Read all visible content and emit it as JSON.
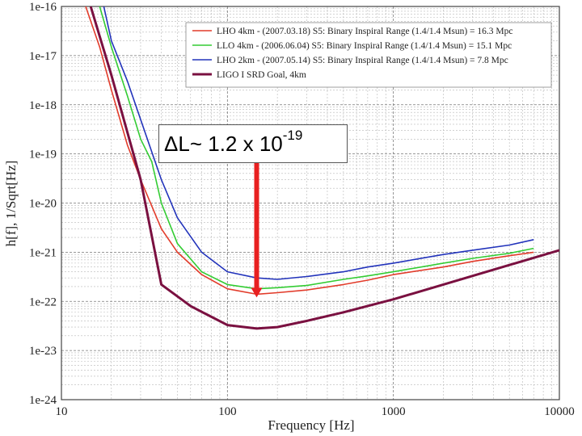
{
  "chart_data": {
    "type": "line",
    "xscale": "log",
    "yscale": "log",
    "xlim": [
      10,
      10000
    ],
    "ylim": [
      1e-24,
      1e-16
    ],
    "xlabel": "Frequency [Hz]",
    "ylabel": "h[f], 1/Sqrt[Hz]",
    "x_ticks": [
      "10",
      "100",
      "1000",
      "10000"
    ],
    "y_ticks": [
      "1e-24",
      "1e-23",
      "1e-22",
      "1e-21",
      "1e-20",
      "1e-19",
      "1e-18",
      "1e-17",
      "1e-16"
    ],
    "grid": true,
    "legend_position": "top-right",
    "series": [
      {
        "name": "LHO 4km - (2007.03.18) S5: Binary Inspiral Range (1.4/1.4 Msun) = 16.3 Mpc",
        "color": "#e23b2a",
        "x": [
          14,
          17,
          20,
          25,
          30,
          40,
          50,
          70,
          100,
          150,
          200,
          300,
          500,
          700,
          1000,
          2000,
          3000,
          5000,
          7000
        ],
        "y": [
          1e-16,
          1.5e-17,
          2e-18,
          1.5e-19,
          3e-20,
          3e-21,
          1e-21,
          3.5e-22,
          1.8e-22,
          1.4e-22,
          1.5e-22,
          1.7e-22,
          2.2e-22,
          2.7e-22,
          3.5e-22,
          5e-22,
          6.5e-22,
          8.5e-22,
          1e-21
        ]
      },
      {
        "name": "LLO 4km - (2006.06.04) S5: Binary Inspiral Range (1.4/1.4 Msun) = 15.1 Mpc",
        "color": "#33cc33",
        "x": [
          17,
          20,
          25,
          30,
          35,
          40,
          50,
          70,
          100,
          150,
          200,
          300,
          500,
          700,
          1000,
          2000,
          3000,
          5000,
          7000
        ],
        "y": [
          1e-16,
          1.5e-17,
          1.5e-18,
          2e-19,
          7e-20,
          1e-20,
          1.5e-21,
          4e-22,
          2.2e-22,
          1.8e-22,
          1.9e-22,
          2.1e-22,
          2.8e-22,
          3.3e-22,
          4e-22,
          6e-22,
          7.5e-22,
          9.5e-22,
          1.2e-21
        ]
      },
      {
        "name": "LHO 2km - (2007.05.14) S5: Binary Inspiral Range (1.4/1.4 Msun) = 7.8 Mpc",
        "color": "#2233bb",
        "x": [
          18,
          20,
          25,
          30,
          40,
          50,
          70,
          100,
          150,
          200,
          300,
          500,
          700,
          1000,
          2000,
          3000,
          5000,
          7000
        ],
        "y": [
          1e-16,
          2e-17,
          3e-18,
          5e-19,
          3e-20,
          5e-21,
          1e-21,
          4e-22,
          3e-22,
          2.8e-22,
          3.2e-22,
          4e-22,
          5e-22,
          6e-22,
          9e-22,
          1.1e-21,
          1.4e-21,
          1.8e-21
        ]
      },
      {
        "name": "LIGO I SRD Goal, 4km",
        "color": "#7a1040",
        "x": [
          15,
          20,
          30,
          40,
          60,
          100,
          150,
          200,
          300,
          500,
          1000,
          2000,
          5000,
          10000
        ],
        "y": [
          1e-16,
          4e-18,
          3e-20,
          2.2e-22,
          8e-23,
          3.3e-23,
          2.8e-23,
          3e-23,
          4e-23,
          6e-23,
          1.1e-22,
          2.2e-22,
          5.5e-22,
          1.1e-21
        ]
      }
    ],
    "annotation": {
      "label_main": "ΔL~ 1.2 x 10",
      "label_exp": "-19",
      "arrow_from": [
        150,
        1e-19
      ],
      "arrow_to": [
        150,
        1.2e-22
      ]
    }
  }
}
